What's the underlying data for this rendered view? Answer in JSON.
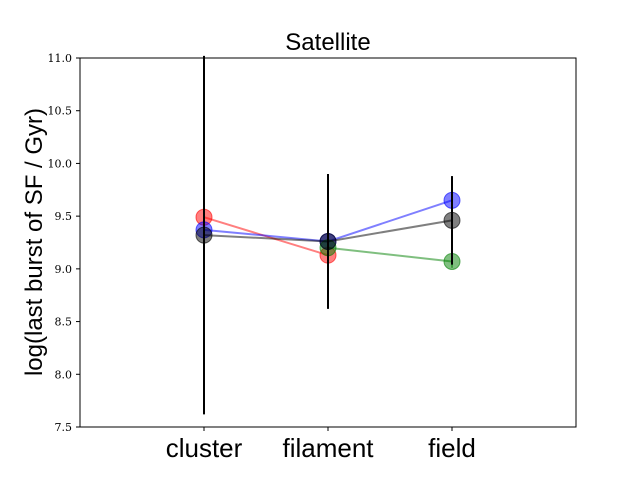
{
  "chart_data": {
    "type": "line",
    "title": "Satellite",
    "xlabel": "",
    "ylabel": "log(last burst of SF / Gyr)",
    "categories": [
      "cluster",
      "filament",
      "field"
    ],
    "ylim": [
      7.5,
      11.0
    ],
    "yticks": [
      "7.5",
      "8.0",
      "8.5",
      "9.0",
      "9.5",
      "10.0",
      "10.5",
      "11.0"
    ],
    "grid": false,
    "legend": "none",
    "series": [
      {
        "color": "#ff0000",
        "values": [
          9.49,
          9.13,
          null
        ],
        "err_low": [
          0.14,
          0.12,
          null
        ],
        "err_high": [
          0.24,
          0.12,
          null
        ]
      },
      {
        "color": "#0000ff",
        "values": [
          9.37,
          9.26,
          9.65
        ],
        "err_low": [
          0.12,
          0.27,
          0.14
        ],
        "err_high": [
          0.12,
          0.3,
          0.14
        ]
      },
      {
        "color": "#008000",
        "values": [
          null,
          9.2,
          9.07
        ],
        "err_low": [
          null,
          0.06,
          0.06
        ],
        "err_high": [
          null,
          0.06,
          0.06
        ]
      },
      {
        "color": "#000000",
        "values": [
          9.32,
          9.26,
          9.46
        ],
        "err_low": [
          1.7,
          0.64,
          0.42
        ],
        "err_high": [
          1.7,
          0.64,
          0.42
        ]
      }
    ]
  }
}
